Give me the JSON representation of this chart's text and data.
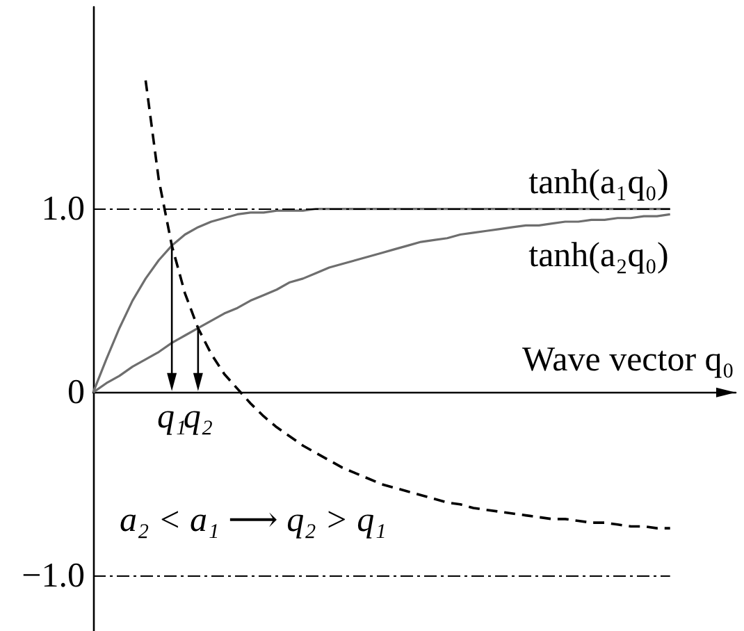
{
  "chart_data": {
    "type": "line",
    "categories": [
      null,
      null,
      null,
      null,
      null,
      null,
      "q₁",
      null,
      "q₂",
      null,
      null,
      null,
      null,
      null,
      null,
      null,
      null,
      null,
      null,
      null,
      null,
      null,
      null,
      null,
      null,
      null,
      null,
      null,
      null,
      null,
      null,
      null,
      null,
      null,
      null,
      null,
      null,
      null,
      null,
      null,
      null,
      null,
      null,
      null,
      null,
      null,
      null,
      null,
      null,
      null
    ],
    "series": [
      {
        "name": "tanh(a₁q₀)",
        "color": "#6e6e6e",
        "values": [
          0,
          0.18,
          0.35,
          0.5,
          0.62,
          0.72,
          0.8,
          0.86,
          0.9,
          0.93,
          0.95,
          0.97,
          0.98,
          0.98,
          0.99,
          0.99,
          0.99,
          1,
          1,
          1,
          1,
          1,
          1,
          1,
          1,
          1,
          1,
          1,
          1,
          1,
          1,
          1,
          1,
          1,
          1,
          1,
          1,
          1,
          1,
          1,
          1,
          1,
          1,
          1,
          1,
          null,
          null,
          null,
          null,
          null
        ]
      },
      {
        "name": "tanh(a₂q₀)",
        "color": "#6e6e6e",
        "values": [
          0,
          0.05,
          0.09,
          0.14,
          0.18,
          0.22,
          0.27,
          0.31,
          0.35,
          0.39,
          0.43,
          0.46,
          0.5,
          0.53,
          0.56,
          0.6,
          0.62,
          0.65,
          0.68,
          0.7,
          0.72,
          0.74,
          0.76,
          0.78,
          0.8,
          0.82,
          0.83,
          0.84,
          0.86,
          0.87,
          0.88,
          0.89,
          0.9,
          0.91,
          0.91,
          0.92,
          0.93,
          0.93,
          0.94,
          0.94,
          0.95,
          0.95,
          0.96,
          0.96,
          0.97,
          null,
          null,
          null,
          null,
          null
        ]
      },
      {
        "color": "#000000",
        "line_style": "dashed",
        "values": [
          null,
          null,
          null,
          null,
          1.7,
          1.16,
          0.8,
          0.54,
          0.35,
          0.21,
          0.1,
          0.02,
          -0.06,
          -0.13,
          -0.19,
          -0.24,
          -0.29,
          -0.33,
          -0.37,
          -0.41,
          -0.44,
          -0.47,
          -0.5,
          -0.52,
          -0.54,
          -0.56,
          -0.58,
          -0.6,
          -0.61,
          -0.63,
          -0.64,
          -0.65,
          -0.66,
          -0.67,
          -0.68,
          -0.69,
          -0.69,
          -0.7,
          -0.71,
          -0.71,
          -0.72,
          -0.73,
          -0.73,
          -0.74,
          -0.74,
          null,
          null,
          null,
          null,
          null
        ]
      }
    ],
    "xlabel": "Wave vector q₀",
    "ylim": [
      -1.3,
      2.1
    ],
    "yticks": [
      {
        "value": -1,
        "label": "−1.0"
      },
      0,
      {
        "value": 1,
        "label": "1.0"
      }
    ],
    "ref_lines": [
      {
        "axis": "y",
        "value": 1,
        "color": "#000000",
        "line_style": "dashdot"
      },
      {
        "axis": "y",
        "value": -1,
        "color": "#000000",
        "line_style": "dashdot"
      }
    ],
    "annotations": [
      "a₂ < a₁ ⟶ q₂ > q₁"
    ],
    "legend": false,
    "grid": false,
    "marker": "none",
    "line_style": "solid"
  }
}
